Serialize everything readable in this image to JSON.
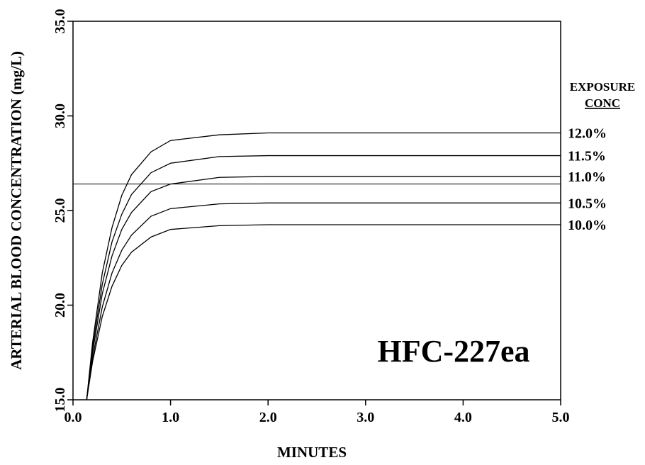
{
  "chart_data": {
    "type": "line",
    "x_label": "MINUTES",
    "y_label": "ARTERIAL BLOOD CONCENTRATION (mg/L)",
    "annotation": "HFC-227ea",
    "legend_title": [
      "EXPOSURE",
      "CONC"
    ],
    "x": [
      0.14,
      0.2,
      0.3,
      0.4,
      0.5,
      0.6,
      0.8,
      1.0,
      1.5,
      2.0,
      3.0,
      4.0,
      5.0
    ],
    "series": [
      {
        "name": "12.0%",
        "color": "#000000",
        "values": [
          15.0,
          18.0,
          21.7,
          24.1,
          25.8,
          26.9,
          28.1,
          28.7,
          29.0,
          29.1,
          29.1,
          29.1,
          29.1
        ]
      },
      {
        "name": "11.5%",
        "color": "#000000",
        "values": [
          15.0,
          17.75,
          21.1,
          23.35,
          24.8,
          25.85,
          27.0,
          27.5,
          27.85,
          27.9,
          27.9,
          27.9,
          27.9
        ]
      },
      {
        "name": "11.0%",
        "color": "#000000",
        "values": [
          15.0,
          17.5,
          20.6,
          22.6,
          24.0,
          24.9,
          26.0,
          26.4,
          26.75,
          26.8,
          26.8,
          26.8,
          26.8
        ]
      },
      {
        "name": "10.5%",
        "color": "#000000",
        "values": [
          15.0,
          17.2,
          19.9,
          21.7,
          22.9,
          23.7,
          24.7,
          25.1,
          25.35,
          25.4,
          25.4,
          25.4,
          25.4
        ]
      },
      {
        "name": "10.0%",
        "color": "#000000",
        "values": [
          15.0,
          17.0,
          19.4,
          21.0,
          22.1,
          22.8,
          23.6,
          24.0,
          24.2,
          24.25,
          24.25,
          24.25,
          24.25
        ]
      }
    ],
    "reference_line": 26.4,
    "xlim": [
      0,
      5
    ],
    "ylim": [
      15,
      35
    ],
    "xticks": [
      {
        "value": 0,
        "label": "0.0"
      },
      {
        "value": 1,
        "label": "1.0"
      },
      {
        "value": 2,
        "label": "2.0"
      },
      {
        "value": 3,
        "label": "3.0"
      },
      {
        "value": 4,
        "label": "4.0"
      },
      {
        "value": 5,
        "label": "5.0"
      }
    ],
    "yticks": [
      {
        "value": 15,
        "label": "15.0"
      },
      {
        "value": 20,
        "label": "20.0"
      },
      {
        "value": 25,
        "label": "25.0"
      },
      {
        "value": 30,
        "label": "30.0"
      },
      {
        "value": 35,
        "label": "35.0"
      }
    ],
    "grid": false
  }
}
